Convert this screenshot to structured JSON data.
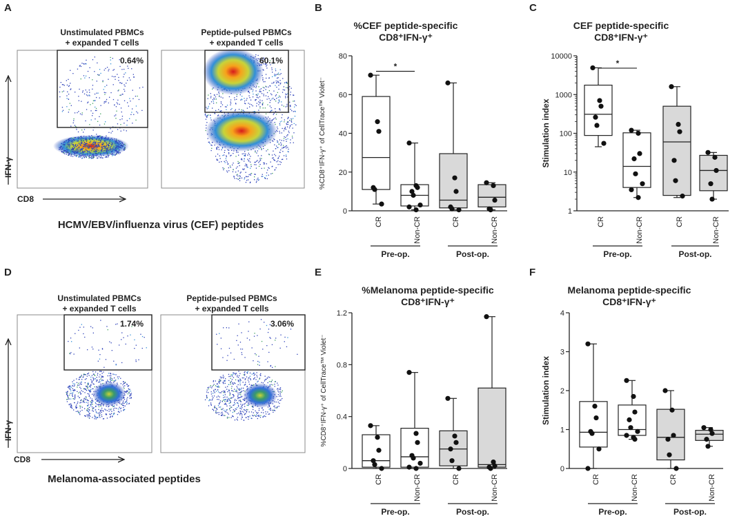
{
  "panels": {
    "A": {
      "letter": "A",
      "left_title": [
        "Unstimulated PBMCs",
        "+ expanded T cells"
      ],
      "right_title": [
        "Peptide-pulsed PBMCs",
        "+ expanded T cells"
      ],
      "left_pct": "0.64%",
      "right_pct": "60.1%",
      "y_label": "IFN-γ",
      "x_label": "CD8",
      "caption": "HCMV/EBV/influenza virus (CEF) peptides"
    },
    "D": {
      "letter": "D",
      "left_title": [
        "Unstimulated PBMCs",
        "+ expanded T cells"
      ],
      "right_title": [
        "Peptide-pulsed PBMCs",
        "+ expanded T cells"
      ],
      "left_pct": "1.74%",
      "right_pct": "3.06%",
      "y_label": "IFN-γ",
      "x_label": "CD8",
      "caption": "Melanoma-associated peptides"
    }
  },
  "colors": {
    "box_open": "#ffffff",
    "box_grey": "#d9d9d9",
    "ink": "#222222"
  },
  "chart_data": [
    {
      "id": "B",
      "type": "box",
      "scale": "linear",
      "title": "%CEF peptide-specific",
      "subtitle": "CD8⁺IFN-γ⁺",
      "ylabel": "%CD8⁺IFN-γ⁺ of CellTrace™ Violet⁻",
      "ylim": [
        0,
        80
      ],
      "yticks": [
        0,
        20,
        40,
        60,
        80
      ],
      "categories": [
        "CR",
        "Non-CR",
        "CR",
        "Non-CR"
      ],
      "groups": [
        {
          "label": "Pre-op.",
          "span": [
            0,
            1
          ]
        },
        {
          "label": "Post-op.",
          "span": [
            2,
            3
          ]
        }
      ],
      "significance": [
        {
          "pair": [
            0,
            1
          ],
          "label": "*",
          "y": 72
        }
      ],
      "series": [
        {
          "name": "Pre-op. CR",
          "fill": "open",
          "min": 3.5,
          "q1": 11,
          "median": 27.5,
          "q3": 59,
          "max": 70,
          "points": [
            70,
            46,
            41,
            12,
            11,
            3.5
          ]
        },
        {
          "name": "Pre-op. Non-CR",
          "fill": "open",
          "min": 0.5,
          "q1": 2.5,
          "median": 8,
          "q3": 13.5,
          "max": 35,
          "points": [
            35,
            13,
            12,
            10,
            8,
            3,
            2,
            0.5
          ]
        },
        {
          "name": "Post-op. CR",
          "fill": "grey",
          "min": 0.5,
          "q1": 1.5,
          "median": 5.5,
          "q3": 29.5,
          "max": 66,
          "points": [
            66,
            17,
            10,
            2,
            1,
            0.5
          ]
        },
        {
          "name": "Post-op. Non-CR",
          "fill": "grey",
          "min": 0.5,
          "q1": 2,
          "median": 7,
          "q3": 13.5,
          "max": 14.5,
          "points": [
            14.5,
            13,
            5.5,
            1,
            0.5
          ]
        }
      ]
    },
    {
      "id": "C",
      "type": "box",
      "scale": "log",
      "title": "CEF peptide-specific",
      "subtitle": "CD8⁺IFN-γ⁺",
      "ylabel": "Stimulation index",
      "ylim": [
        1,
        10000
      ],
      "yticks": [
        1,
        10,
        100,
        1000,
        10000
      ],
      "categories": [
        "CR",
        "Non-CR",
        "CR",
        "Non-CR"
      ],
      "groups": [
        {
          "label": "Pre-op.",
          "span": [
            0,
            1
          ]
        },
        {
          "label": "Post-op.",
          "span": [
            2,
            3
          ]
        }
      ],
      "significance": [
        {
          "pair": [
            0,
            1
          ],
          "label": "*",
          "y": 4800
        }
      ],
      "series": [
        {
          "name": "Pre-op. CR",
          "fill": "open",
          "min": 45,
          "q1": 88,
          "median": 310,
          "q3": 1750,
          "max": 4900,
          "points": [
            4900,
            700,
            500,
            260,
            160,
            55
          ]
        },
        {
          "name": "Pre-op. Non-CR",
          "fill": "open",
          "min": 2.2,
          "q1": 4,
          "median": 14,
          "q3": 103,
          "max": 120,
          "points": [
            120,
            100,
            30,
            22,
            9,
            5,
            3.5,
            2.2
          ]
        },
        {
          "name": "Post-op. CR",
          "fill": "grey",
          "min": 2.2,
          "q1": 2.5,
          "median": 60,
          "q3": 500,
          "max": 1600,
          "points": [
            1600,
            170,
            110,
            20,
            6,
            2.4
          ]
        },
        {
          "name": "Post-op. Non-CR",
          "fill": "grey",
          "min": 2,
          "q1": 3.3,
          "median": 11,
          "q3": 27,
          "max": 32,
          "points": [
            32,
            24,
            11,
            5,
            2
          ]
        }
      ]
    },
    {
      "id": "E",
      "type": "box",
      "scale": "linear",
      "title": "%Melanoma peptide-specific",
      "subtitle": "CD8⁺IFN-γ⁺",
      "ylabel": "%CD8⁺IFN-γ⁺ of CellTrace™ Violet⁻",
      "ylim": [
        0,
        1.2
      ],
      "yticks": [
        0,
        0.4,
        0.8,
        1.2
      ],
      "categories": [
        "CR",
        "Non-CR",
        "CR",
        "Non-CR"
      ],
      "groups": [
        {
          "label": "Pre-op.",
          "span": [
            0,
            1
          ]
        },
        {
          "label": "Post-op.",
          "span": [
            2,
            3
          ]
        }
      ],
      "significance": [],
      "series": [
        {
          "name": "Pre-op. CR",
          "fill": "open",
          "min": 0,
          "q1": 0.01,
          "median": 0.06,
          "q3": 0.26,
          "max": 0.33,
          "points": [
            0.33,
            0.24,
            0.14,
            0.06,
            0.03,
            0
          ]
        },
        {
          "name": "Pre-op. Non-CR",
          "fill": "open",
          "min": 0,
          "q1": 0.01,
          "median": 0.09,
          "q3": 0.31,
          "max": 0.74,
          "points": [
            0.74,
            0.27,
            0.2,
            0.1,
            0.08,
            0.04,
            0.01,
            0
          ]
        },
        {
          "name": "Post-op. CR",
          "fill": "grey",
          "min": 0,
          "q1": 0.02,
          "median": 0.15,
          "q3": 0.29,
          "max": 0.54,
          "points": [
            0.54,
            0.25,
            0.2,
            0.15,
            0.06,
            0
          ]
        },
        {
          "name": "Post-op. Non-CR",
          "fill": "grey",
          "min": 0,
          "q1": 0.01,
          "median": 0.03,
          "q3": 0.62,
          "max": 1.17,
          "points": [
            1.17,
            0.05,
            0.02,
            0.01,
            0
          ]
        }
      ]
    },
    {
      "id": "F",
      "type": "box",
      "scale": "linear",
      "title": "Melanoma peptide-specific",
      "subtitle": "CD8⁺IFN-γ⁺",
      "ylabel": "Stimulation index",
      "ylim": [
        0,
        4
      ],
      "yticks": [
        0,
        1,
        2,
        3,
        4
      ],
      "categories": [
        "CR",
        "Non-CR",
        "CR",
        "Non-CR"
      ],
      "groups": [
        {
          "label": "Pre-op.",
          "span": [
            0,
            1
          ]
        },
        {
          "label": "Post-op.",
          "span": [
            2,
            3
          ]
        }
      ],
      "significance": [],
      "series": [
        {
          "name": "Pre-op. CR",
          "fill": "open",
          "min": 0,
          "q1": 0.55,
          "median": 0.93,
          "q3": 1.72,
          "max": 3.2,
          "points": [
            3.2,
            1.6,
            1.3,
            0.95,
            0.9,
            0.5,
            0
          ]
        },
        {
          "name": "Pre-op. Non-CR",
          "fill": "open",
          "min": 0.75,
          "q1": 0.85,
          "median": 1.0,
          "q3": 1.63,
          "max": 2.26,
          "points": [
            2.26,
            1.85,
            1.45,
            1.25,
            1.05,
            0.95,
            0.85,
            0.8,
            0.75
          ]
        },
        {
          "name": "Post-op. CR",
          "fill": "grey",
          "min": 0,
          "q1": 0.22,
          "median": 0.8,
          "q3": 1.52,
          "max": 2.0,
          "points": [
            2.0,
            1.5,
            0.85,
            0.75,
            0.35,
            0
          ]
        },
        {
          "name": "Post-op. Non-CR",
          "fill": "grey",
          "min": 0.57,
          "q1": 0.72,
          "median": 0.88,
          "q3": 0.98,
          "max": 1.05,
          "points": [
            1.05,
            1.0,
            0.9,
            0.75,
            0.57
          ]
        }
      ]
    }
  ]
}
